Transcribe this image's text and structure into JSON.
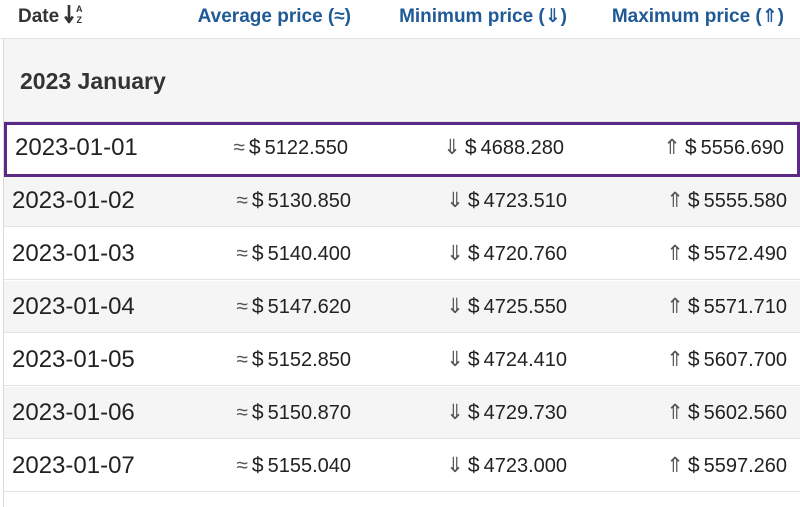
{
  "header": {
    "date": "Date",
    "avg": "Average price (≈)",
    "min": "Minimum price (⇓)",
    "max": "Maximum price (⇑)",
    "sort_icon": "sort-az-icon"
  },
  "group": {
    "title": "2023 January"
  },
  "symbols": {
    "avg": "≈",
    "min": "⇓",
    "max": "⇑",
    "currency": "$"
  },
  "colors": {
    "header_link": "#1f5a96",
    "selected_border": "#5b2a86",
    "alt_row": "#f5f5f5"
  },
  "rows": [
    {
      "date": "2023-01-01",
      "avg": "5122.550",
      "min": "4688.280",
      "max": "5556.690"
    },
    {
      "date": "2023-01-02",
      "avg": "5130.850",
      "min": "4723.510",
      "max": "5555.580"
    },
    {
      "date": "2023-01-03",
      "avg": "5140.400",
      "min": "4720.760",
      "max": "5572.490"
    },
    {
      "date": "2023-01-04",
      "avg": "5147.620",
      "min": "4725.550",
      "max": "5571.710"
    },
    {
      "date": "2023-01-05",
      "avg": "5152.850",
      "min": "4724.410",
      "max": "5607.700"
    },
    {
      "date": "2023-01-06",
      "avg": "5150.870",
      "min": "4729.730",
      "max": "5602.560"
    },
    {
      "date": "2023-01-07",
      "avg": "5155.040",
      "min": "4723.000",
      "max": "5597.260"
    }
  ]
}
